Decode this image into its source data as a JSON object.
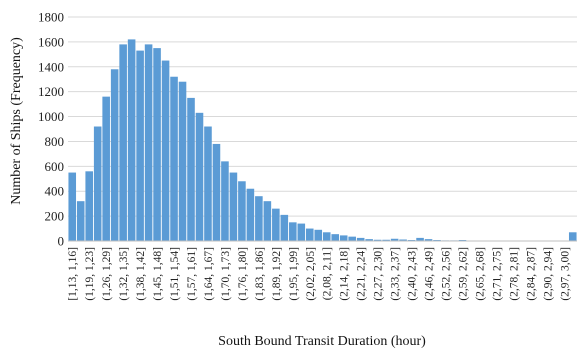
{
  "chart_data": {
    "type": "bar",
    "title": "",
    "xlabel": "South Bound Transit Duration (hour)",
    "ylabel": "Number of Ships (Frequency)",
    "ylim": [
      0,
      1800
    ],
    "yticks": [
      0,
      200,
      400,
      600,
      800,
      1000,
      1200,
      1400,
      1600,
      1800
    ],
    "grid": true,
    "bar_color": "#5b9bd5",
    "grid_color": "#d9d9d9",
    "labeled_categories": [
      "[1,13, 1,16]",
      "(1,19, 1,23]",
      "(1,26, 1,29]",
      "(1,32, 1,35]",
      "(1,38, 1,42]",
      "(1,45, 1,48]",
      "(1,51, 1,54]",
      "(1,57, 1,61]",
      "(1,64, 1,67]",
      "(1,70, 1,73]",
      "(1,76, 1,80]",
      "(1,83, 1,86]",
      "(1,89, 1,92]",
      "(1,95, 1,99]",
      "(2,02, 2,05]",
      "(2,08, 2,11]",
      "(2,14, 2,18]",
      "(2,21, 2,24]",
      "(2,27, 2,30]",
      "(2,33, 2,37]",
      "(2,40, 2,43]",
      "(2,46, 2,49]",
      "(2,52, 2,56]",
      "(2,59, 2,62]",
      "(2,65, 2,68]",
      "(2,71, 2,75]",
      "(2,78, 2,81]",
      "(2,84, 2,87]",
      "(2,90, 2,94]",
      "(2,97, 3,00]"
    ],
    "values": [
      550,
      320,
      560,
      920,
      1160,
      1380,
      1580,
      1620,
      1530,
      1580,
      1550,
      1450,
      1320,
      1280,
      1150,
      1030,
      920,
      780,
      640,
      550,
      480,
      420,
      360,
      320,
      260,
      210,
      150,
      140,
      100,
      90,
      70,
      55,
      45,
      35,
      25,
      15,
      10,
      10,
      18,
      12,
      8,
      25,
      15,
      8,
      5,
      5,
      8,
      3,
      3,
      2,
      2,
      2,
      2,
      2,
      1,
      1,
      1,
      1,
      1,
      70
    ]
  }
}
